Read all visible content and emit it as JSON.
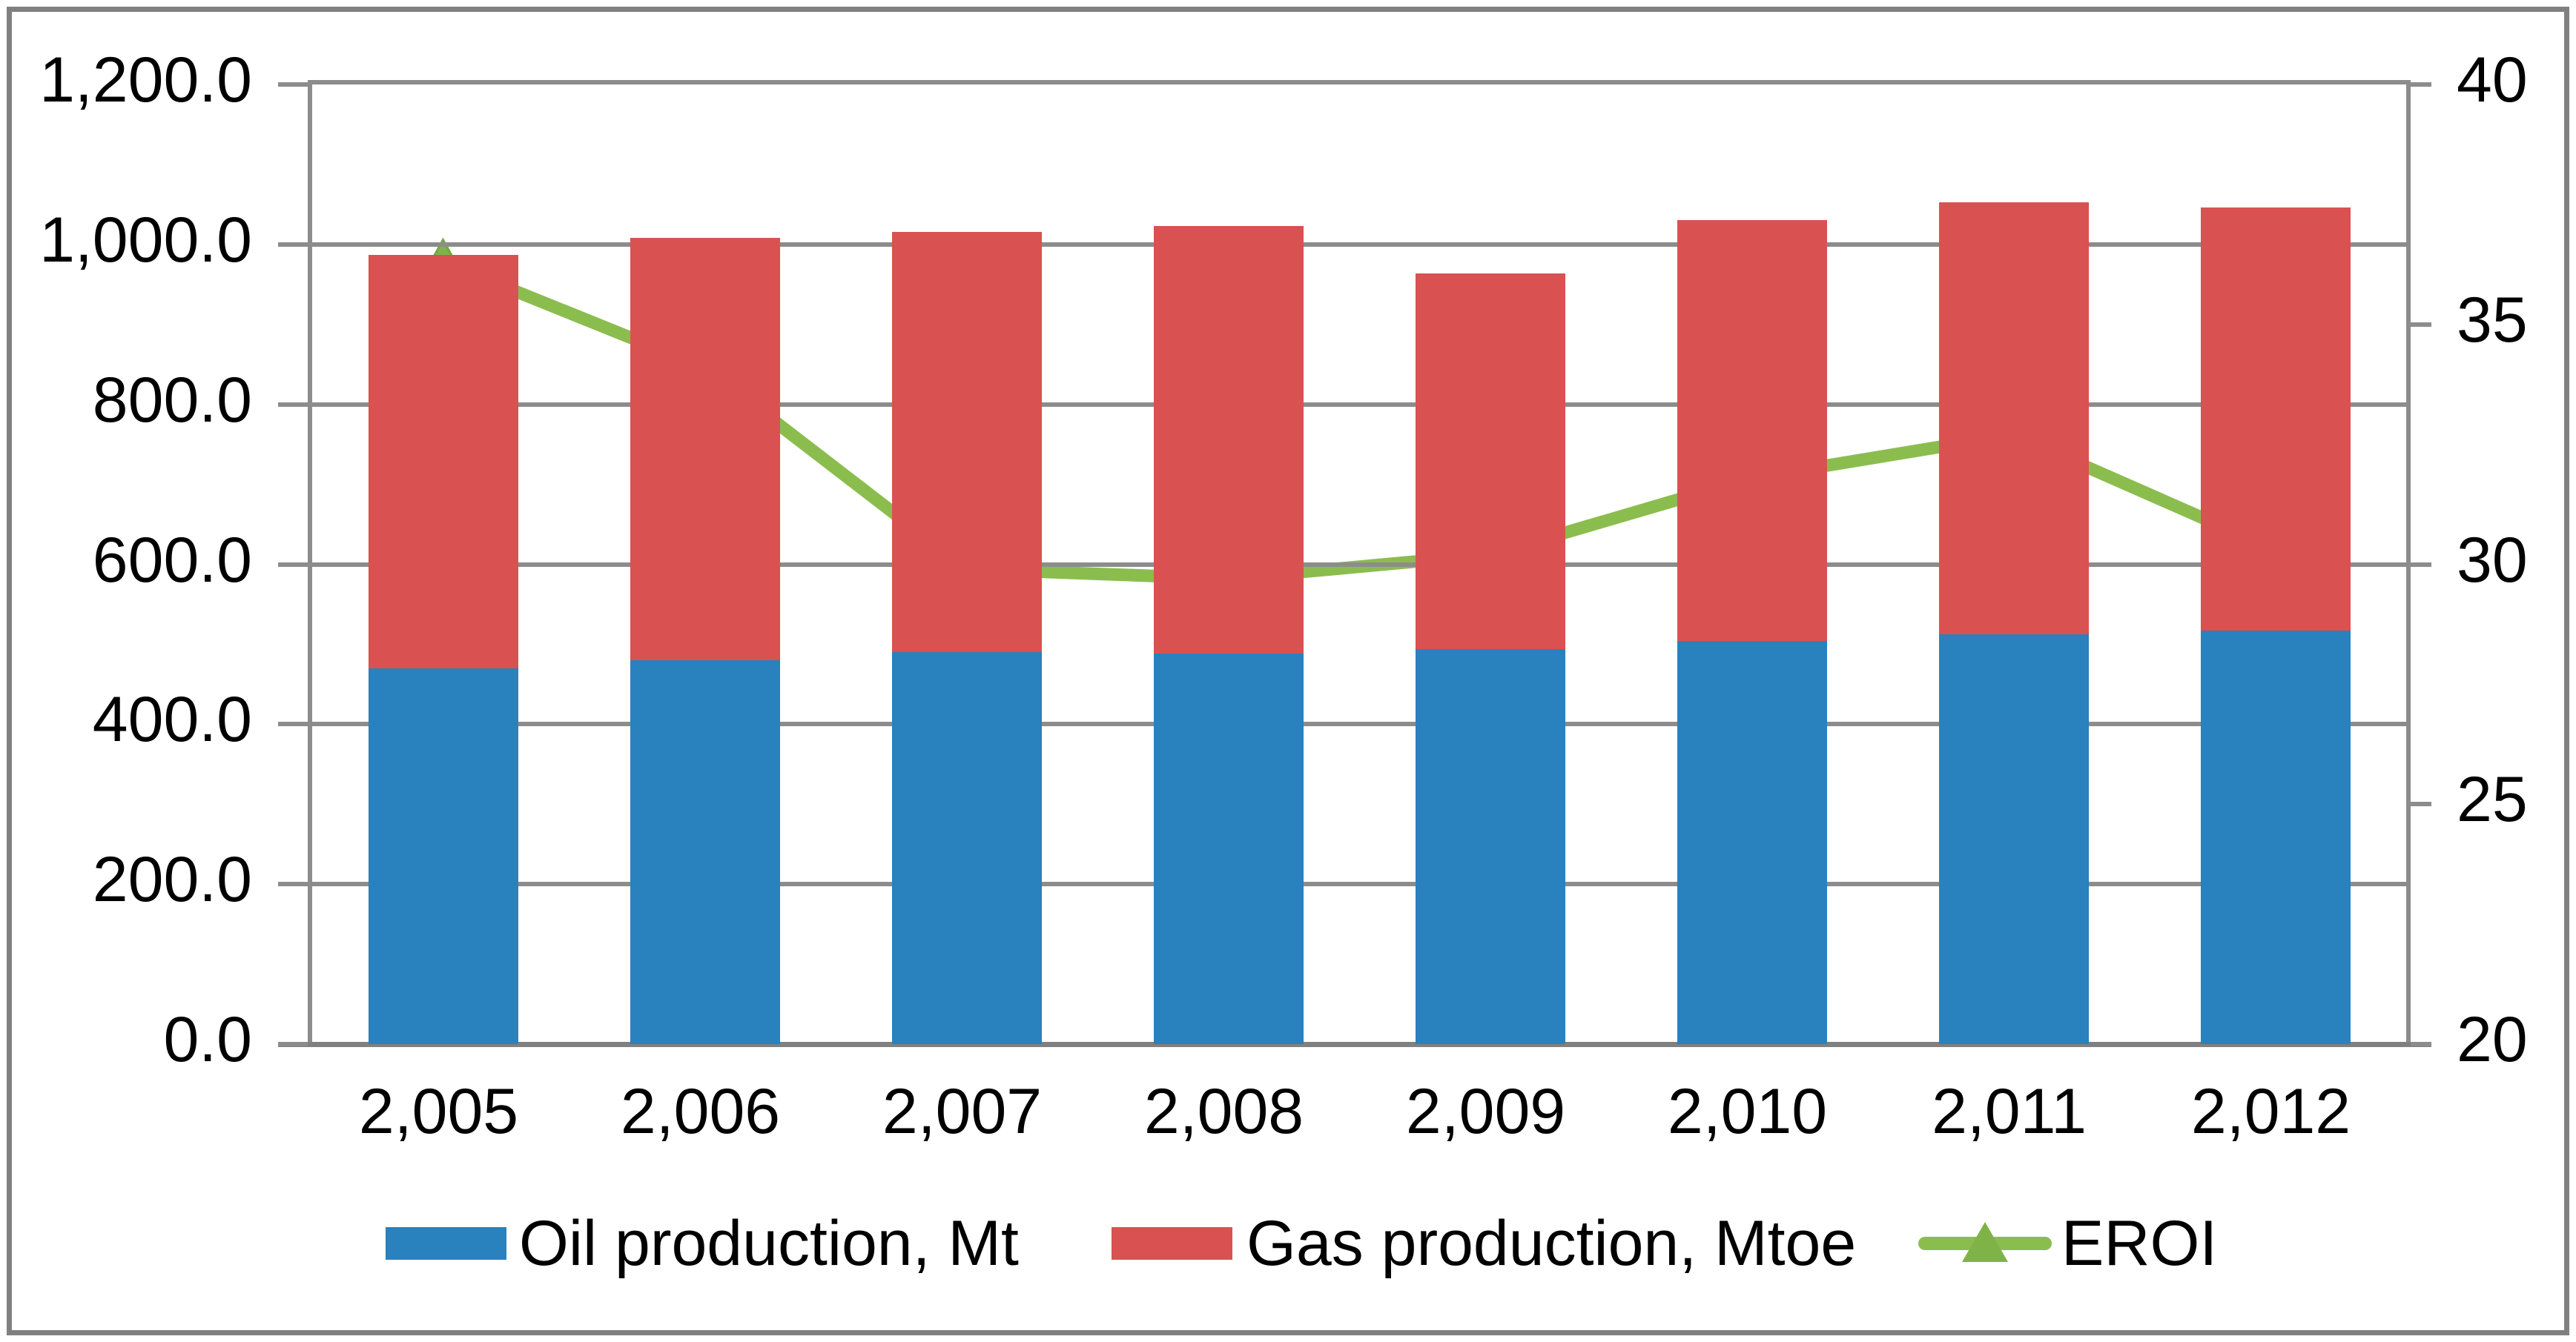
{
  "figure": {
    "background": "#FFFFFF",
    "border_color": "#808080"
  },
  "colors": {
    "gridline": "#8C8C8C",
    "axis_line": "#808080",
    "text": "#000000",
    "oil_blue": "#2981BE",
    "gas_red": "#DA5151",
    "eroi_green": "#8BBD4E",
    "eroi_marker_green": "#7FB348"
  },
  "legend": {
    "items": [
      {
        "label": "Oil production, Mt",
        "swatch": "rect-blue"
      },
      {
        "label": "Gas production, Mtoe",
        "swatch": "rect-red"
      },
      {
        "label": "EROI",
        "swatch": "line-triangle-green"
      }
    ]
  },
  "chart_data": {
    "type": "bar",
    "subtype": "stacked-bars-with-line-overlay",
    "title": "",
    "xlabel": "",
    "ylabel_left": "",
    "ylabel_right": "",
    "categories": [
      "2,005",
      "2,006",
      "2,007",
      "2,008",
      "2,009",
      "2,010",
      "2,011",
      "2,012"
    ],
    "series": [
      {
        "name": "Oil production, Mt",
        "type": "bar",
        "stack": "total",
        "axis": "left",
        "color": "#2981BE",
        "values": [
          470,
          480,
          490,
          488,
          494,
          504,
          512,
          517
        ]
      },
      {
        "name": "Gas production, Mtoe",
        "type": "bar",
        "stack": "total",
        "axis": "left",
        "color": "#DA5151",
        "values": [
          517,
          528,
          526,
          535,
          470,
          526,
          541,
          529
        ]
      },
      {
        "name": "EROI",
        "type": "line",
        "marker": "triangle-up",
        "axis": "right",
        "color": "#8BBD4E",
        "values": [
          36.3,
          34.1,
          29.9,
          29.7,
          30.2,
          31.8,
          32.7,
          30.3
        ]
      }
    ],
    "stacked_totals": [
      987,
      1008,
      1016,
      1023,
      964,
      1030,
      1053,
      1046
    ],
    "left_axis": {
      "min": 0,
      "max": 1200,
      "step": 200,
      "tick_labels": [
        "0.0",
        "200.0",
        "400.0",
        "600.0",
        "800.0",
        "1,000.0",
        "1,200.0"
      ]
    },
    "right_axis": {
      "min": 20,
      "max": 40,
      "step": 5,
      "tick_labels": [
        "20",
        "25",
        "30",
        "35",
        "40"
      ]
    },
    "grid": "horizontal-major",
    "legend_position": "bottom"
  }
}
